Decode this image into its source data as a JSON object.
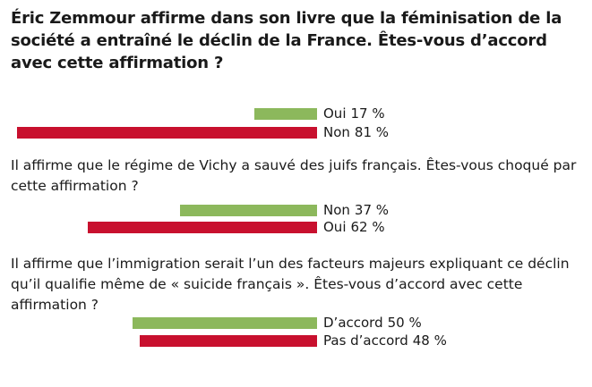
{
  "chart_data": [
    {
      "type": "bar",
      "title": "Éric Zemmour affirme dans son livre que la féminisation de la société a entraîné le déclin de la France. Êtes-vous d’accord avec cette affirmation ?",
      "categories": [
        "Oui",
        "Non"
      ],
      "values": [
        17,
        81
      ],
      "value_labels": [
        "17 %",
        "81 %"
      ],
      "colors": [
        "#8cb85c",
        "#c8102e"
      ]
    },
    {
      "type": "bar",
      "title": "Il affirme que le régime de Vichy a sauvé des juifs français. Êtes-vous choqué par cette affirmation ?",
      "categories": [
        "Non",
        "Oui"
      ],
      "values": [
        37,
        62
      ],
      "value_labels": [
        "37 %",
        "62 %"
      ],
      "colors": [
        "#8cb85c",
        "#c8102e"
      ]
    },
    {
      "type": "bar",
      "title": "Il affirme que l’immigration serait l’un des facteurs majeurs expliquant ce déclin qu’il qualifie même de « suicide français ». Êtes-vous d’accord avec cette affirmation ?",
      "categories": [
        "D’accord",
        "Pas d’accord"
      ],
      "values": [
        50,
        48
      ],
      "value_labels": [
        "50 %",
        "48 %"
      ],
      "colors": [
        "#8cb85c",
        "#c8102e"
      ]
    }
  ]
}
